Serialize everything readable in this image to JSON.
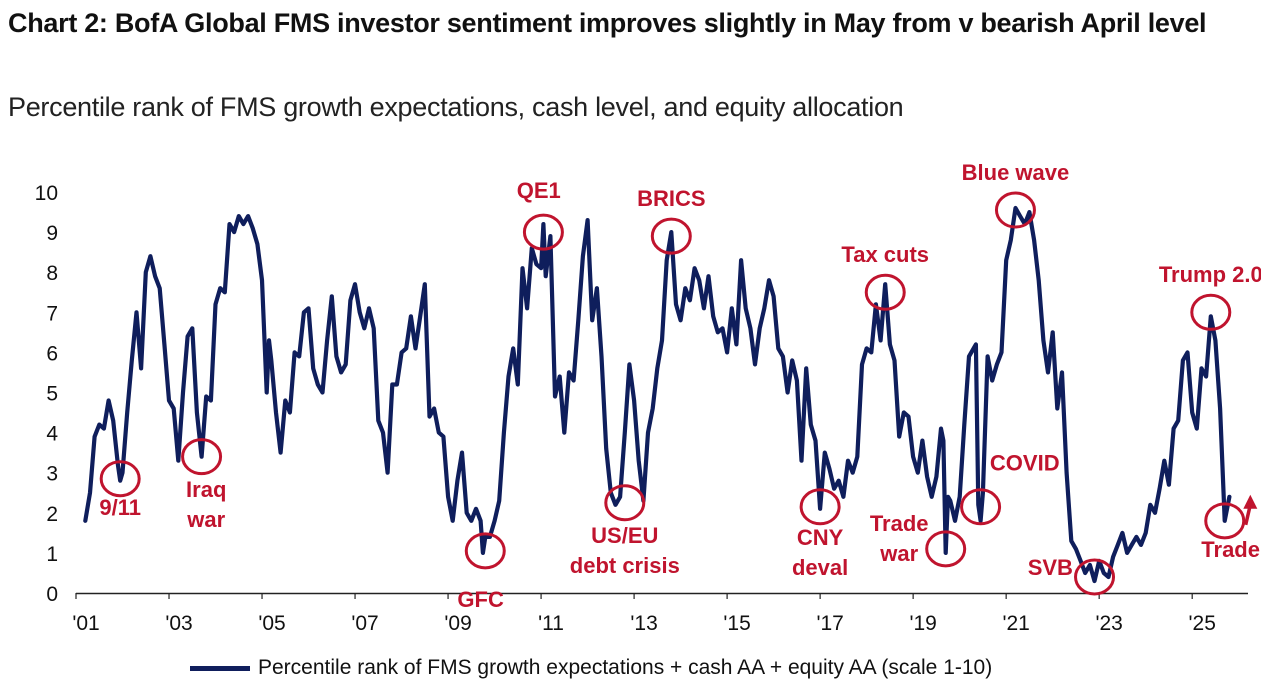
{
  "header": {
    "title": "Chart 2: BofA Global FMS investor sentiment improves slightly in May from v bearish April level",
    "subtitle": "Percentile rank of FMS growth expectations, cash level, and equity allocation"
  },
  "colors": {
    "line": "#0f1e5c",
    "annotation": "#c0142e",
    "axis": "#222222"
  },
  "chart_data": {
    "type": "line",
    "title": "Chart 2: BofA Global FMS investor sentiment improves slightly in May from v bearish April level",
    "subtitle": "Percentile rank of FMS growth expectations, cash level, and equity allocation",
    "xlim": [
      2001,
      2026.2
    ],
    "ylim": [
      0,
      10
    ],
    "y_ticks": [
      0,
      1,
      2,
      3,
      4,
      5,
      6,
      7,
      8,
      9,
      10
    ],
    "x_ticks": [
      {
        "value": 2001,
        "label": "'01"
      },
      {
        "value": 2003,
        "label": "'03"
      },
      {
        "value": 2005,
        "label": "'05"
      },
      {
        "value": 2007,
        "label": "'07"
      },
      {
        "value": 2009,
        "label": "'09"
      },
      {
        "value": 2011,
        "label": "'11"
      },
      {
        "value": 2013,
        "label": "'13"
      },
      {
        "value": 2015,
        "label": "'15"
      },
      {
        "value": 2017,
        "label": "'17"
      },
      {
        "value": 2019,
        "label": "'19"
      },
      {
        "value": 2021,
        "label": "'21"
      },
      {
        "value": 2023,
        "label": "'23"
      },
      {
        "value": 2025,
        "label": "'25"
      }
    ],
    "grid": false,
    "legend_position": "bottom",
    "series": [
      {
        "name": "Percentile rank of FMS growth expectations + cash AA + equity AA (scale 1-10)",
        "points": [
          [
            2001.2,
            1.8
          ],
          [
            2001.3,
            2.5
          ],
          [
            2001.4,
            3.9
          ],
          [
            2001.5,
            4.2
          ],
          [
            2001.6,
            4.1
          ],
          [
            2001.7,
            4.8
          ],
          [
            2001.8,
            4.3
          ],
          [
            2001.9,
            3.2
          ],
          [
            2001.95,
            2.8
          ],
          [
            2002.0,
            3.0
          ],
          [
            2002.1,
            4.5
          ],
          [
            2002.2,
            5.8
          ],
          [
            2002.3,
            7.0
          ],
          [
            2002.4,
            5.6
          ],
          [
            2002.5,
            8.0
          ],
          [
            2002.6,
            8.4
          ],
          [
            2002.7,
            7.9
          ],
          [
            2002.8,
            7.6
          ],
          [
            2002.9,
            6.2
          ],
          [
            2003.0,
            4.8
          ],
          [
            2003.1,
            4.6
          ],
          [
            2003.2,
            3.3
          ],
          [
            2003.3,
            5.0
          ],
          [
            2003.4,
            6.4
          ],
          [
            2003.5,
            6.6
          ],
          [
            2003.6,
            4.5
          ],
          [
            2003.7,
            3.4
          ],
          [
            2003.8,
            4.9
          ],
          [
            2003.9,
            4.8
          ],
          [
            2004.0,
            7.2
          ],
          [
            2004.1,
            7.6
          ],
          [
            2004.2,
            7.5
          ],
          [
            2004.3,
            9.2
          ],
          [
            2004.4,
            9.0
          ],
          [
            2004.5,
            9.4
          ],
          [
            2004.6,
            9.2
          ],
          [
            2004.7,
            9.4
          ],
          [
            2004.8,
            9.1
          ],
          [
            2004.9,
            8.7
          ],
          [
            2005.0,
            7.8
          ],
          [
            2005.1,
            5.0
          ],
          [
            2005.15,
            6.3
          ],
          [
            2005.2,
            5.8
          ],
          [
            2005.3,
            4.5
          ],
          [
            2005.4,
            3.5
          ],
          [
            2005.5,
            4.8
          ],
          [
            2005.6,
            4.5
          ],
          [
            2005.7,
            6.0
          ],
          [
            2005.8,
            5.9
          ],
          [
            2005.9,
            7.0
          ],
          [
            2006.0,
            7.1
          ],
          [
            2006.1,
            5.6
          ],
          [
            2006.2,
            5.2
          ],
          [
            2006.3,
            5.0
          ],
          [
            2006.4,
            6.3
          ],
          [
            2006.5,
            7.4
          ],
          [
            2006.6,
            5.9
          ],
          [
            2006.7,
            5.5
          ],
          [
            2006.8,
            5.7
          ],
          [
            2006.9,
            7.3
          ],
          [
            2007.0,
            7.7
          ],
          [
            2007.1,
            7.0
          ],
          [
            2007.2,
            6.6
          ],
          [
            2007.3,
            7.1
          ],
          [
            2007.4,
            6.6
          ],
          [
            2007.5,
            4.3
          ],
          [
            2007.6,
            4.0
          ],
          [
            2007.7,
            3.0
          ],
          [
            2007.8,
            5.2
          ],
          [
            2007.9,
            5.2
          ],
          [
            2008.0,
            6.0
          ],
          [
            2008.1,
            6.1
          ],
          [
            2008.2,
            6.9
          ],
          [
            2008.3,
            6.1
          ],
          [
            2008.4,
            6.9
          ],
          [
            2008.5,
            7.7
          ],
          [
            2008.6,
            4.4
          ],
          [
            2008.7,
            4.6
          ],
          [
            2008.8,
            4.0
          ],
          [
            2008.9,
            3.9
          ],
          [
            2009.0,
            2.4
          ],
          [
            2009.1,
            1.8
          ],
          [
            2009.2,
            2.8
          ],
          [
            2009.3,
            3.5
          ],
          [
            2009.4,
            2.0
          ],
          [
            2009.5,
            1.8
          ],
          [
            2009.6,
            2.1
          ],
          [
            2009.7,
            1.8
          ],
          [
            2009.75,
            1.0
          ],
          [
            2009.8,
            1.4
          ],
          [
            2009.9,
            1.4
          ],
          [
            2010.0,
            1.8
          ],
          [
            2010.1,
            2.3
          ],
          [
            2010.2,
            4.0
          ],
          [
            2010.3,
            5.4
          ],
          [
            2010.4,
            6.1
          ],
          [
            2010.5,
            5.2
          ],
          [
            2010.6,
            8.1
          ],
          [
            2010.7,
            7.1
          ],
          [
            2010.8,
            8.6
          ],
          [
            2010.9,
            8.2
          ],
          [
            2011.0,
            8.1
          ],
          [
            2011.05,
            9.2
          ],
          [
            2011.1,
            7.9
          ],
          [
            2011.2,
            8.9
          ],
          [
            2011.3,
            4.9
          ],
          [
            2011.4,
            5.4
          ],
          [
            2011.5,
            4.0
          ],
          [
            2011.6,
            5.5
          ],
          [
            2011.7,
            5.3
          ],
          [
            2011.8,
            6.8
          ],
          [
            2011.9,
            8.4
          ],
          [
            2012.0,
            9.3
          ],
          [
            2012.1,
            6.8
          ],
          [
            2012.2,
            7.6
          ],
          [
            2012.3,
            5.9
          ],
          [
            2012.4,
            3.6
          ],
          [
            2012.5,
            2.5
          ],
          [
            2012.6,
            2.2
          ],
          [
            2012.7,
            2.4
          ],
          [
            2012.8,
            4.0
          ],
          [
            2012.9,
            5.7
          ],
          [
            2013.0,
            4.8
          ],
          [
            2013.1,
            3.3
          ],
          [
            2013.2,
            2.3
          ],
          [
            2013.3,
            4.0
          ],
          [
            2013.4,
            4.6
          ],
          [
            2013.5,
            5.6
          ],
          [
            2013.6,
            6.3
          ],
          [
            2013.7,
            8.3
          ],
          [
            2013.8,
            9.0
          ],
          [
            2013.9,
            7.2
          ],
          [
            2014.0,
            6.8
          ],
          [
            2014.1,
            7.6
          ],
          [
            2014.2,
            7.3
          ],
          [
            2014.3,
            8.1
          ],
          [
            2014.4,
            7.8
          ],
          [
            2014.5,
            7.1
          ],
          [
            2014.6,
            7.9
          ],
          [
            2014.7,
            6.9
          ],
          [
            2014.8,
            6.5
          ],
          [
            2014.9,
            6.6
          ],
          [
            2015.0,
            6.0
          ],
          [
            2015.1,
            7.1
          ],
          [
            2015.2,
            6.2
          ],
          [
            2015.3,
            8.3
          ],
          [
            2015.4,
            7.1
          ],
          [
            2015.5,
            6.6
          ],
          [
            2015.6,
            5.7
          ],
          [
            2015.7,
            6.6
          ],
          [
            2015.8,
            7.1
          ],
          [
            2015.9,
            7.8
          ],
          [
            2016.0,
            7.4
          ],
          [
            2016.1,
            6.1
          ],
          [
            2016.2,
            5.9
          ],
          [
            2016.3,
            5.0
          ],
          [
            2016.4,
            5.8
          ],
          [
            2016.5,
            5.3
          ],
          [
            2016.6,
            3.3
          ],
          [
            2016.7,
            5.6
          ],
          [
            2016.8,
            4.2
          ],
          [
            2016.9,
            3.8
          ],
          [
            2017.0,
            2.1
          ],
          [
            2017.1,
            3.5
          ],
          [
            2017.2,
            3.1
          ],
          [
            2017.3,
            2.6
          ],
          [
            2017.4,
            2.8
          ],
          [
            2017.5,
            2.4
          ],
          [
            2017.6,
            3.3
          ],
          [
            2017.7,
            3.0
          ],
          [
            2017.8,
            3.4
          ],
          [
            2017.9,
            5.7
          ],
          [
            2018.0,
            6.1
          ],
          [
            2018.1,
            6.0
          ],
          [
            2018.2,
            7.2
          ],
          [
            2018.3,
            6.3
          ],
          [
            2018.4,
            7.7
          ],
          [
            2018.5,
            6.2
          ],
          [
            2018.6,
            5.8
          ],
          [
            2018.7,
            3.9
          ],
          [
            2018.8,
            4.5
          ],
          [
            2018.9,
            4.4
          ],
          [
            2019.0,
            3.4
          ],
          [
            2019.1,
            3.0
          ],
          [
            2019.2,
            3.8
          ],
          [
            2019.3,
            2.9
          ],
          [
            2019.4,
            2.4
          ],
          [
            2019.5,
            2.9
          ],
          [
            2019.6,
            4.1
          ],
          [
            2019.65,
            3.8
          ],
          [
            2019.7,
            1.0
          ],
          [
            2019.75,
            2.4
          ],
          [
            2019.8,
            2.3
          ],
          [
            2019.9,
            1.8
          ],
          [
            2020.0,
            2.4
          ],
          [
            2020.1,
            4.2
          ],
          [
            2020.2,
            5.9
          ],
          [
            2020.3,
            6.1
          ],
          [
            2020.35,
            6.2
          ],
          [
            2020.4,
            2.2
          ],
          [
            2020.45,
            1.8
          ],
          [
            2020.5,
            2.5
          ],
          [
            2020.6,
            5.9
          ],
          [
            2020.7,
            5.3
          ],
          [
            2020.8,
            5.7
          ],
          [
            2020.9,
            6.0
          ],
          [
            2021.0,
            8.3
          ],
          [
            2021.1,
            8.8
          ],
          [
            2021.2,
            9.6
          ],
          [
            2021.3,
            9.4
          ],
          [
            2021.4,
            9.2
          ],
          [
            2021.5,
            9.5
          ],
          [
            2021.6,
            8.8
          ],
          [
            2021.7,
            7.8
          ],
          [
            2021.8,
            6.3
          ],
          [
            2021.9,
            5.5
          ],
          [
            2022.0,
            6.5
          ],
          [
            2022.1,
            4.6
          ],
          [
            2022.2,
            5.5
          ],
          [
            2022.3,
            3.0
          ],
          [
            2022.4,
            1.3
          ],
          [
            2022.5,
            1.1
          ],
          [
            2022.6,
            0.8
          ],
          [
            2022.7,
            0.5
          ],
          [
            2022.8,
            0.7
          ],
          [
            2022.9,
            0.3
          ],
          [
            2023.0,
            0.8
          ],
          [
            2023.1,
            0.5
          ],
          [
            2023.2,
            0.4
          ],
          [
            2023.3,
            0.9
          ],
          [
            2023.4,
            1.2
          ],
          [
            2023.5,
            1.5
          ],
          [
            2023.6,
            1.0
          ],
          [
            2023.7,
            1.2
          ],
          [
            2023.8,
            1.4
          ],
          [
            2023.9,
            1.2
          ],
          [
            2024.0,
            1.5
          ],
          [
            2024.1,
            2.2
          ],
          [
            2024.2,
            2.0
          ],
          [
            2024.3,
            2.6
          ],
          [
            2024.4,
            3.3
          ],
          [
            2024.5,
            2.7
          ],
          [
            2024.6,
            4.1
          ],
          [
            2024.7,
            4.3
          ],
          [
            2024.8,
            5.8
          ],
          [
            2024.9,
            6.0
          ],
          [
            2025.0,
            4.5
          ],
          [
            2025.1,
            4.1
          ],
          [
            2025.2,
            5.6
          ],
          [
            2025.3,
            5.4
          ],
          [
            2025.4,
            6.9
          ],
          [
            2025.5,
            6.3
          ],
          [
            2025.6,
            4.6
          ],
          [
            2025.7,
            1.8
          ],
          [
            2025.8,
            2.4
          ]
        ]
      }
    ],
    "annotations": [
      {
        "text": "9/11",
        "x": 2001.95,
        "y": 2.85,
        "label_x": 2001.95,
        "label_y": 1.95
      },
      {
        "text": "Iraq\nwar",
        "x": 2003.7,
        "y": 3.4,
        "label_x": 2003.8,
        "label_y": 2.4
      },
      {
        "text": "GFC",
        "x": 2009.8,
        "y": 1.05,
        "label_x": 2009.7,
        "label_y": -0.35
      },
      {
        "text": "QE1",
        "x": 2011.05,
        "y": 9.0,
        "label_x": 2010.95,
        "label_y": 9.85
      },
      {
        "text": "US/EU\ndebt crisis",
        "x": 2012.8,
        "y": 2.25,
        "label_x": 2012.8,
        "label_y": 1.25
      },
      {
        "text": "BRICS",
        "x": 2013.8,
        "y": 8.9,
        "label_x": 2013.8,
        "label_y": 9.65
      },
      {
        "text": "CNY\ndeval",
        "x": 2017.0,
        "y": 2.15,
        "label_x": 2017.0,
        "label_y": 1.2
      },
      {
        "text": "Tax cuts",
        "x": 2018.4,
        "y": 7.5,
        "label_x": 2018.4,
        "label_y": 8.25
      },
      {
        "text": "Trade\nwar",
        "x": 2019.7,
        "y": 1.1,
        "label_x": 2018.7,
        "label_y": 1.55
      },
      {
        "text": "COVID",
        "x": 2020.45,
        "y": 2.15,
        "label_x": 2021.4,
        "label_y": 3.05
      },
      {
        "text": "Blue wave",
        "x": 2021.2,
        "y": 9.55,
        "label_x": 2021.2,
        "label_y": 10.3
      },
      {
        "text": "SVB",
        "x": 2022.9,
        "y": 0.4,
        "label_x": 2021.95,
        "label_y": 0.45
      },
      {
        "text": "Trump 2.0",
        "x": 2025.4,
        "y": 7.0,
        "label_x": 2025.4,
        "label_y": 7.75
      },
      {
        "text": "Trade war",
        "x": 2025.7,
        "y": 1.8,
        "label_x": 2026.3,
        "label_y": 0.9
      }
    ],
    "arrow": {
      "from": [
        2026.15,
        1.7
      ],
      "to": [
        2026.25,
        2.35
      ]
    }
  }
}
